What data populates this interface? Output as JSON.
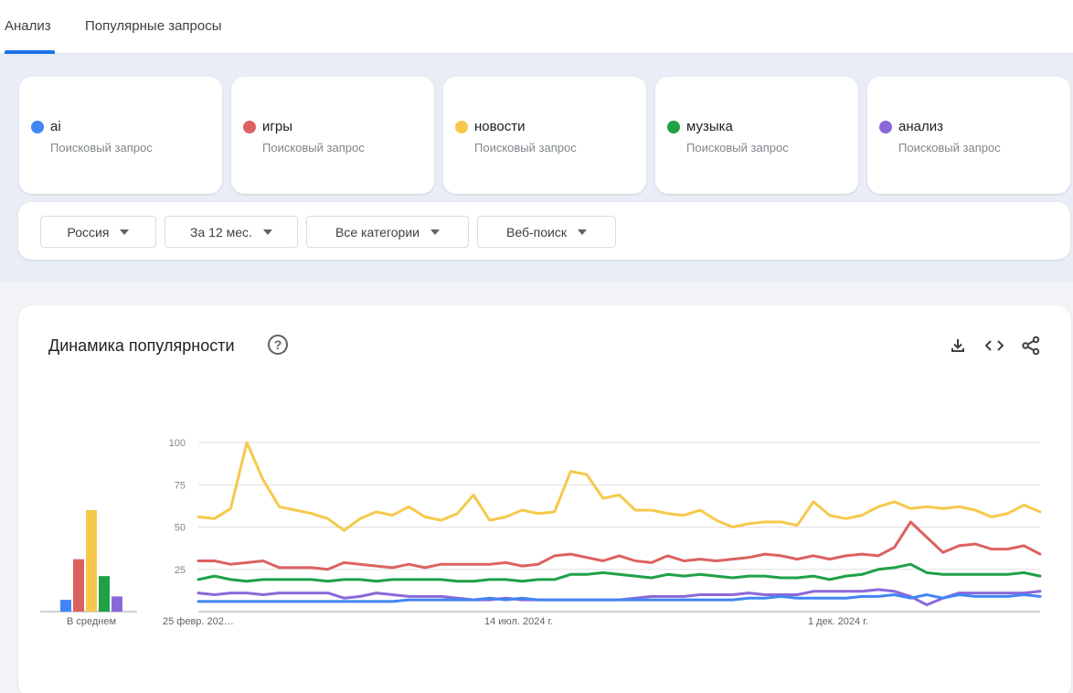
{
  "tabs": [
    "Анализ",
    "Популярные запросы"
  ],
  "terms": [
    {
      "name": "ai",
      "type": "Поисковый запрос",
      "color": "#4285f4"
    },
    {
      "name": "игры",
      "type": "Поисковый запрос",
      "color": "#db6260"
    },
    {
      "name": "новости",
      "type": "Поисковый запрос",
      "color": "#f6c94c"
    },
    {
      "name": "музыка",
      "type": "Поисковый запрос",
      "color": "#1fa146"
    },
    {
      "name": "анализ",
      "type": "Поисковый запрос",
      "color": "#8b68d9"
    }
  ],
  "filters": {
    "region": "Россия",
    "period": "За 12 мес.",
    "category": "Все категории",
    "search_type": "Веб-поиск"
  },
  "chart_section": {
    "title": "Динамика популярности",
    "help_icon": "help-icon",
    "actions": [
      "download-icon",
      "embed-code-icon",
      "share-icon"
    ]
  },
  "chart_data": {
    "type": "line",
    "y_ticks": [
      "100",
      "75",
      "50",
      "25"
    ],
    "ylim": [
      0,
      100
    ],
    "x_tick_labels": [
      "25 февр. 202…",
      "14 июл. 2024 г.",
      "1 дек. 2024 г."
    ],
    "average_label": "В среднем",
    "averages": [
      {
        "name": "ai",
        "value": 7,
        "color": "#4285f4"
      },
      {
        "name": "игры",
        "value": 31,
        "color": "#db6260"
      },
      {
        "name": "новости",
        "value": 60,
        "color": "#f6c94c"
      },
      {
        "name": "музыка",
        "value": 21,
        "color": "#1fa146"
      },
      {
        "name": "анализ",
        "value": 9,
        "color": "#8b68d9"
      }
    ],
    "series": [
      {
        "name": "новости",
        "color": "#f6c94c",
        "values": [
          56,
          55,
          61,
          100,
          78,
          62,
          60,
          58,
          55,
          48,
          55,
          59,
          57,
          62,
          56,
          54,
          58,
          69,
          54,
          56,
          60,
          58,
          59,
          83,
          81,
          67,
          69,
          60,
          60,
          58,
          57,
          60,
          54,
          50,
          52,
          53,
          53,
          51,
          65,
          57,
          55,
          57,
          62,
          65,
          61,
          62,
          61,
          62,
          60,
          56,
          58,
          63,
          59
        ]
      },
      {
        "name": "игры",
        "color": "#db6260",
        "values": [
          30,
          30,
          28,
          29,
          30,
          26,
          26,
          26,
          25,
          29,
          28,
          27,
          26,
          28,
          26,
          28,
          28,
          28,
          28,
          29,
          27,
          28,
          33,
          34,
          32,
          30,
          33,
          30,
          29,
          33,
          30,
          31,
          30,
          31,
          32,
          34,
          33,
          31,
          33,
          31,
          33,
          34,
          33,
          38,
          53,
          44,
          35,
          39,
          40,
          37,
          37,
          39,
          34
        ]
      },
      {
        "name": "музыка",
        "color": "#1fa146",
        "values": [
          19,
          21,
          19,
          18,
          19,
          19,
          19,
          19,
          18,
          19,
          19,
          18,
          19,
          19,
          19,
          19,
          18,
          18,
          19,
          19,
          18,
          19,
          19,
          22,
          22,
          23,
          22,
          21,
          20,
          22,
          21,
          22,
          21,
          20,
          21,
          21,
          20,
          20,
          21,
          19,
          21,
          22,
          25,
          26,
          28,
          23,
          22,
          22,
          22,
          22,
          22,
          23,
          21
        ]
      },
      {
        "name": "анализ",
        "color": "#8b68d9",
        "values": [
          11,
          10,
          11,
          11,
          10,
          11,
          11,
          11,
          11,
          8,
          9,
          11,
          10,
          9,
          9,
          9,
          8,
          7,
          7,
          8,
          7,
          7,
          7,
          7,
          7,
          7,
          7,
          8,
          9,
          9,
          9,
          10,
          10,
          10,
          11,
          10,
          10,
          10,
          12,
          12,
          12,
          12,
          13,
          12,
          9,
          4,
          8,
          11,
          11,
          11,
          11,
          11,
          12
        ]
      },
      {
        "name": "ai",
        "color": "#4285f4",
        "values": [
          6,
          6,
          6,
          6,
          6,
          6,
          6,
          6,
          6,
          6,
          6,
          6,
          6,
          7,
          7,
          7,
          7,
          7,
          8,
          7,
          8,
          7,
          7,
          7,
          7,
          7,
          7,
          7,
          7,
          7,
          7,
          7,
          7,
          7,
          8,
          8,
          9,
          8,
          8,
          8,
          8,
          9,
          9,
          10,
          8,
          10,
          8,
          10,
          9,
          9,
          9,
          10,
          9
        ]
      }
    ]
  }
}
